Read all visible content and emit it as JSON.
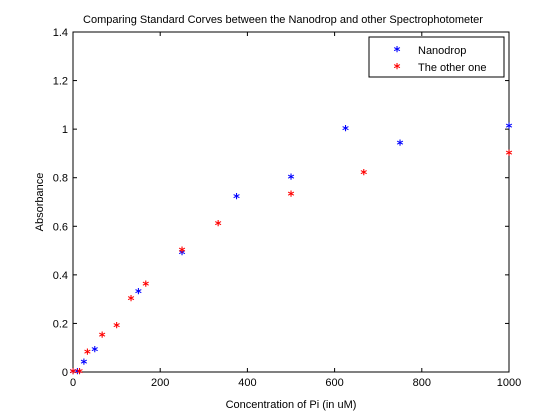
{
  "chart_data": {
    "type": "scatter",
    "title": "Comparing Standard Corves between the Nanodrop and other Spectrophotometer",
    "xlabel": "Concentration of Pi (in uM)",
    "ylabel": "Absorbance",
    "xlim": [
      0,
      1000
    ],
    "ylim": [
      0,
      1.4
    ],
    "xticks": [
      "0",
      "200",
      "400",
      "600",
      "800",
      "1000"
    ],
    "yticks": [
      "0",
      "0.2",
      "0.4",
      "0.6",
      "0.8",
      "1",
      "1.2",
      "1.4"
    ],
    "grid": false,
    "legend_position": "top-right",
    "marker": "*",
    "series": [
      {
        "name": "Nanodrop",
        "color": "#0000ff",
        "x": [
          0,
          10,
          25,
          50,
          150,
          250,
          375,
          500,
          625,
          750,
          1000
        ],
        "y": [
          0.0,
          0.0,
          0.04,
          0.09,
          0.33,
          0.49,
          0.72,
          0.8,
          1.0,
          0.94,
          1.01
        ]
      },
      {
        "name": "The other one",
        "color": "#ff0000",
        "x": [
          0,
          15,
          33,
          67,
          100,
          133,
          167,
          250,
          333,
          500,
          667,
          1000
        ],
        "y": [
          0.0,
          0.0,
          0.08,
          0.15,
          0.19,
          0.3,
          0.36,
          0.5,
          0.61,
          0.73,
          0.82,
          0.9
        ]
      }
    ]
  }
}
